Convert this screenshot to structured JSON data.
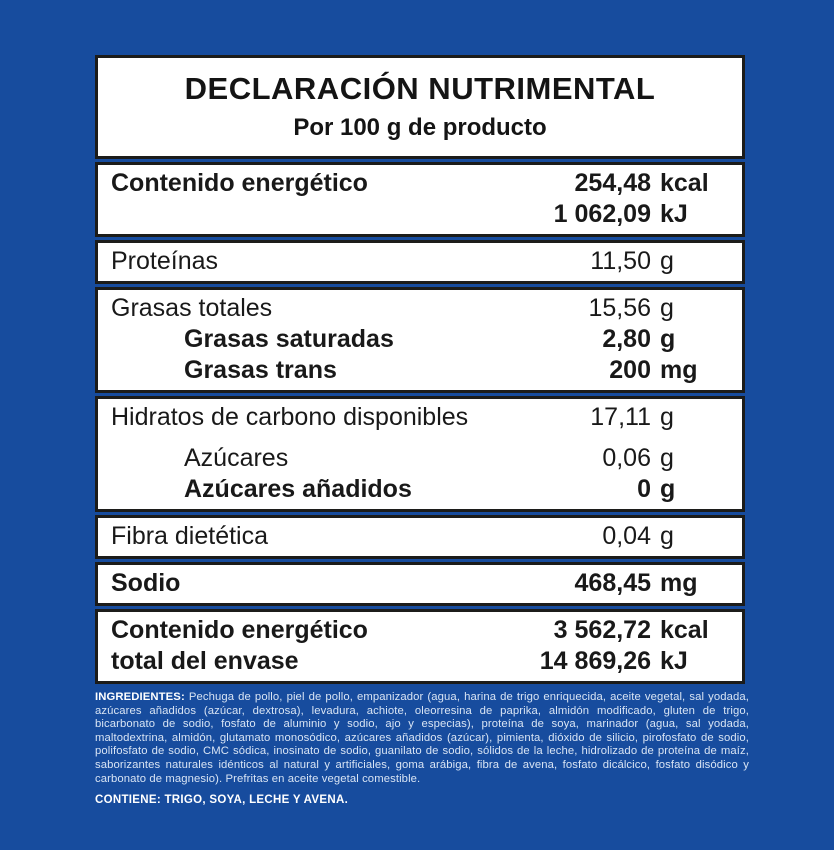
{
  "colors": {
    "background": "#174c9e",
    "box_border": "#1c1c1a",
    "table_text": "#191919",
    "ingredients_text": "#d8e4f4",
    "ingredients_accent": "#ffffff"
  },
  "label": {
    "title": "DECLARACIÓN NUTRIMENTAL",
    "subtitle": "Por 100 g de producto",
    "sections": [
      {
        "rows": [
          {
            "label": "Contenido energético",
            "num": "254,48",
            "unit": "kcal",
            "bold": true
          },
          {
            "label": "",
            "num": "1 062,09",
            "unit": "kJ",
            "bold": true
          }
        ]
      },
      {
        "rows": [
          {
            "label": "Proteínas",
            "num": "11,50",
            "unit": "g"
          }
        ]
      },
      {
        "rows": [
          {
            "label": "Grasas totales",
            "num": "15,56",
            "unit": "g"
          },
          {
            "label": "Grasas saturadas",
            "num": "2,80",
            "unit": "g",
            "bold": true,
            "indent": true
          },
          {
            "label": "Grasas trans",
            "num": "200",
            "unit": "mg",
            "bold": true,
            "indent": true
          }
        ]
      },
      {
        "rows": [
          {
            "label": "Hidratos de carbono disponibles",
            "num": "17,11",
            "unit": "g"
          },
          {
            "label": "Azúcares",
            "num": "0,06",
            "unit": "g",
            "indent": true,
            "spacer": true
          },
          {
            "label": "Azúcares añadidos",
            "num": "0",
            "unit": "g",
            "bold": true,
            "indent": true
          }
        ]
      },
      {
        "rows": [
          {
            "label": "Fibra dietética",
            "num": "0,04",
            "unit": "g"
          }
        ]
      },
      {
        "rows": [
          {
            "label": "Sodio",
            "num": "468,45",
            "unit": "mg",
            "bold": true
          }
        ]
      },
      {
        "rows": [
          {
            "label": "Contenido energético",
            "num": "3 562,72",
            "unit": "kcal",
            "bold": true
          },
          {
            "label": "total del envase",
            "num": "14 869,26",
            "unit": "kJ",
            "bold": true
          }
        ]
      }
    ]
  },
  "ingredients": {
    "label": "INGREDIENTES:",
    "text": "Pechuga de pollo, piel de pollo, empanizador (agua, harina de trigo enriquecida, aceite vegetal, sal yodada, azúcares añadidos (azúcar, dextrosa), levadura, achiote, oleorresina de paprika, almidón modificado, gluten de trigo, bicarbonato de sodio, fosfato de aluminio y sodio, ajo y especias), proteína de soya, marinador (agua, sal yodada, maltodextrina, almidón, glutamato monosódico, azúcares añadidos (azúcar), pimienta, dióxido de silicio, pirofosfato de sodio, polifosfato de sodio, CMC sódica, inosinato de sodio, guanilato de sodio, sólidos de la leche, hidrolizado de proteína de maíz, saborizantes naturales idénticos al natural y artificiales, goma arábiga, fibra de avena, fosfato dicálcico, fosfato disódico y carbonato de magnesio). Prefritas en aceite vegetal comestible."
  },
  "contains": "CONTIENE: TRIGO, SOYA, LECHE Y AVENA."
}
